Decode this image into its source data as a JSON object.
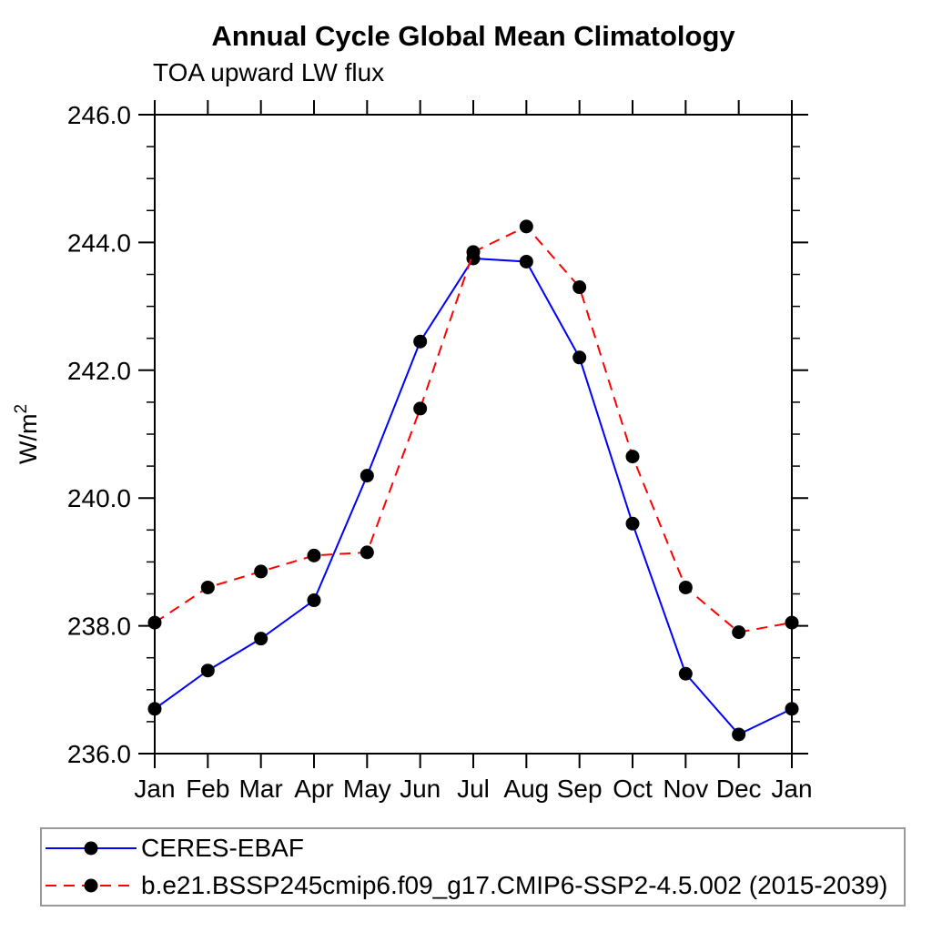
{
  "page": {
    "background_color": "#ffffff"
  },
  "chart_data": {
    "type": "line",
    "title": "Annual Cycle Global Mean Climatology",
    "subtitle": "TOA upward LW flux",
    "ylabel_base": "W/m",
    "ylabel_exponent": "2",
    "categories": [
      "Jan",
      "Feb",
      "Mar",
      "Apr",
      "May",
      "Jun",
      "Jul",
      "Aug",
      "Sep",
      "Oct",
      "Nov",
      "Dec",
      "Jan"
    ],
    "ylim": [
      236.0,
      246.0
    ],
    "ytick_values": [
      236.0,
      238.0,
      240.0,
      242.0,
      244.0,
      246.0
    ],
    "ytick_labels": [
      "236.0",
      "238.0",
      "240.0",
      "242.0",
      "244.0",
      "246.0"
    ],
    "yminor_step": 0.5,
    "grid": false,
    "legend_position": "bottom",
    "axis_color": "#000000",
    "marker": "filled-circle",
    "marker_color": "#000000",
    "series": [
      {
        "name": "CERES-EBAF",
        "color": "#0000ff",
        "line_style": "solid",
        "values": [
          236.7,
          237.3,
          237.8,
          238.4,
          240.35,
          242.45,
          243.75,
          243.7,
          242.2,
          239.6,
          237.25,
          236.3,
          236.7
        ]
      },
      {
        "name": "b.e21.BSSP245cmip6.f09_g17.CMIP6-SSP2-4.5.002 (2015-2039)",
        "color": "#ff0000",
        "line_style": "dashed",
        "values": [
          238.05,
          238.6,
          238.85,
          239.1,
          239.15,
          241.4,
          243.85,
          244.25,
          243.3,
          240.65,
          238.6,
          237.9,
          238.05
        ]
      }
    ]
  }
}
